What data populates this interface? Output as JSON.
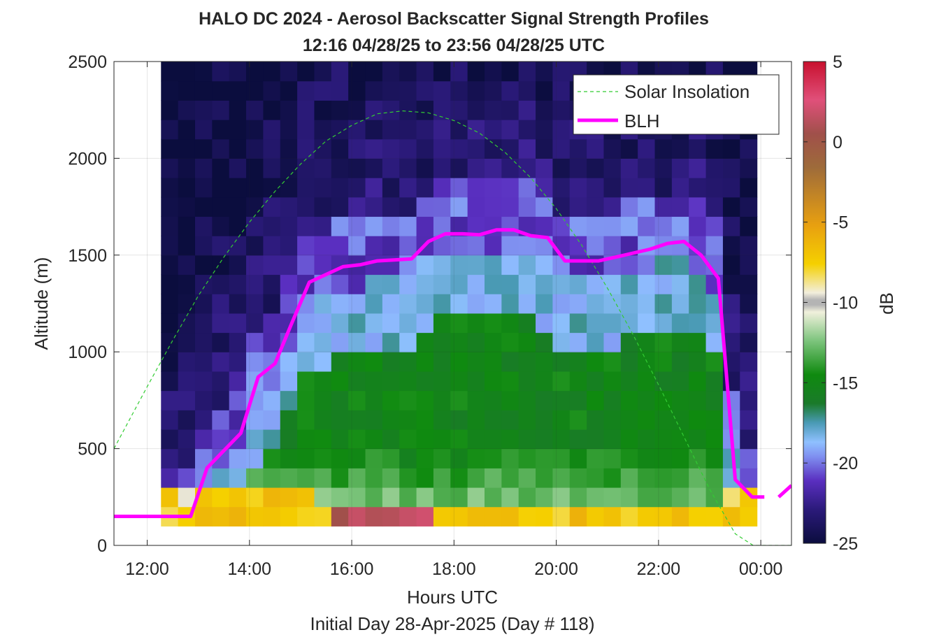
{
  "chart_data": {
    "type": "heatmap",
    "title": "HALO DC 2024 - Aerosol Backscatter Signal Strength Profiles",
    "subtitle": "12:16 04/28/25 to 23:56 04/28/25  UTC",
    "xlabel": "Hours UTC",
    "ylabel": "Altitude (m)",
    "footer": "Initial Day 28-Apr-2025 (Day # 118)",
    "xlim": [
      11.35,
      24.6
    ],
    "ylim": [
      0,
      2500
    ],
    "x_ticks": [
      12,
      14,
      16,
      18,
      20,
      22,
      24
    ],
    "x_tick_labels": [
      "12:00",
      "14:00",
      "16:00",
      "18:00",
      "20:00",
      "22:00",
      "00:00"
    ],
    "y_ticks": [
      0,
      500,
      1000,
      1500,
      2000,
      2500
    ],
    "y_tick_labels": [
      "0",
      "500",
      "1000",
      "1500",
      "2000",
      "2500"
    ],
    "grid": true,
    "legend_position": "top-right",
    "colorbar": {
      "label": "dB",
      "min": -25,
      "max": 5,
      "ticks": [
        5,
        0,
        -5,
        -10,
        -15,
        -20,
        -25
      ],
      "tick_labels": [
        "5",
        "0",
        "-5",
        "-10",
        "-15",
        "-20",
        "-25"
      ],
      "colormap": [
        "#0b0d3e",
        "#2b1a7a",
        "#5a2fc0",
        "#7f8ff0",
        "#8fc0ff",
        "#4a9ab5",
        "#1a7a2a",
        "#0f8a0f",
        "#7cc47c",
        "#f0f0dc",
        "#b4b4b4",
        "#f2eedc",
        "#f5d000",
        "#e8a010",
        "#9e6b3a",
        "#a0504a",
        "#e0507a",
        "#c8102e"
      ]
    },
    "heatmap": {
      "x_start": 12.27,
      "x_end": 23.94,
      "time_step_hours": 0.333,
      "y_start": 100,
      "y_end": 2500,
      "range_step_m": 100
    },
    "series": [
      {
        "name": "Solar Insolation",
        "color": "#33cc33",
        "style": "dashed",
        "x": [
          11.35,
          12.0,
          12.5,
          13.0,
          13.5,
          14.0,
          14.5,
          15.0,
          15.5,
          16.0,
          16.5,
          17.0,
          17.5,
          18.0,
          18.5,
          19.0,
          19.5,
          20.0,
          20.5,
          21.0,
          21.5,
          22.0,
          22.5,
          23.0,
          23.5,
          23.85,
          24.6
        ],
        "y": [
          500,
          820,
          1060,
          1290,
          1490,
          1670,
          1830,
          1970,
          2090,
          2170,
          2230,
          2245,
          2235,
          2195,
          2130,
          2030,
          1900,
          1740,
          1550,
          1330,
          1090,
          830,
          560,
          290,
          60,
          0,
          0
        ]
      },
      {
        "name": "BLH",
        "color": "#ff00ff",
        "style": "solid",
        "x": [
          11.35,
          12.85,
          13.17,
          13.5,
          13.83,
          14.17,
          14.5,
          14.83,
          15.17,
          15.5,
          15.83,
          16.17,
          16.5,
          16.83,
          17.17,
          17.5,
          17.83,
          18.17,
          18.5,
          18.83,
          19.17,
          19.5,
          19.83,
          20.17,
          20.5,
          20.83,
          21.17,
          21.5,
          21.83,
          22.17,
          22.5,
          22.83,
          23.17,
          23.5,
          23.83,
          24.07
        ],
        "y": [
          150,
          150,
          400,
          490,
          580,
          870,
          940,
          1150,
          1360,
          1400,
          1440,
          1450,
          1470,
          1475,
          1480,
          1570,
          1610,
          1610,
          1605,
          1630,
          1630,
          1600,
          1590,
          1470,
          1470,
          1470,
          1490,
          1510,
          1530,
          1560,
          1570,
          1500,
          1380,
          340,
          250,
          250
        ]
      },
      {
        "name": "",
        "color": "#ff00ff",
        "style": "solid",
        "x": [
          24.35,
          24.6
        ],
        "y": [
          250,
          310
        ]
      }
    ]
  }
}
